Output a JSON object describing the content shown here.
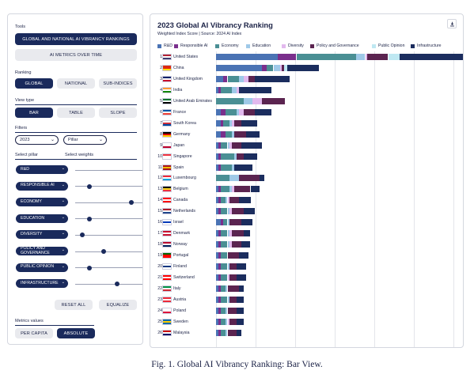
{
  "controls": {
    "tools_label": "Tools",
    "tool_buttons": [
      "GLOBAL AND NATIONAL AI VIBRANCY RANKINGS",
      "AI METRICS OVER TIME"
    ],
    "ranking_label": "Ranking",
    "ranking_buttons": [
      "GLOBAL",
      "NATIONAL",
      "SUB-INDICES"
    ],
    "viewtype_label": "View type",
    "viewtype_buttons": [
      "BAR",
      "TABLE",
      "SLOPE"
    ],
    "filters_label": "Filters",
    "year_value": "2023",
    "filter_value": "Pillar",
    "select_pillar_label": "Select pillar",
    "select_weights_label": "Select weights",
    "pillars": [
      {
        "label": "R&D",
        "weight": 1.0
      },
      {
        "label": "RESPONSIBLE AI",
        "weight": 0.2
      },
      {
        "label": "ECONOMY",
        "weight": 0.8
      },
      {
        "label": "EDUCATION",
        "weight": 0.2
      },
      {
        "label": "DIVERSITY",
        "weight": 0.1
      },
      {
        "label": "POLICY AND GOVERNANCE",
        "weight": 0.4
      },
      {
        "label": "PUBLIC OPINION",
        "weight": 0.2
      },
      {
        "label": "INFRASTRUCTURE",
        "weight": 0.6
      }
    ],
    "reset_label": "RESET ALL",
    "equalize_label": "EQUALIZE",
    "metrics_label": "Metrics values",
    "metric_buttons": [
      "PER CAPITA",
      "ABSOLUTE"
    ]
  },
  "chart_header": {
    "title": "2023 Global AI Vibrancy Ranking",
    "subtitle": "Weighted Index Score | Source: 2024 AI Index",
    "download_icon": "download-icon"
  },
  "colors": {
    "R&D": "#4a73b4",
    "Responsible AI": "#7a2f8c",
    "Economy": "#4a8f94",
    "Education": "#9fc9e8",
    "Diversity": "#e2b9ee",
    "Policy and Governance": "#5b2450",
    "Public Opinion": "#bfe8f2",
    "Infrastructure": "#1b2d5e"
  },
  "chart_data": {
    "type": "bar",
    "orientation": "horizontal",
    "stacked": true,
    "title": "2023 Global AI Vibrancy Ranking",
    "subtitle": "Weighted Index Score | Source: 2024 AI Index",
    "legend_position": "top",
    "grid": true,
    "xlim": [
      0,
      100
    ],
    "series_names": [
      "R&D",
      "Responsible AI",
      "Economy",
      "Education",
      "Diversity",
      "Policy and Governance",
      "Public Opinion",
      "Infrastructure"
    ],
    "rows": [
      {
        "rank": "1",
        "country": "United States",
        "flag": [
          "#b22234",
          "#ffffff",
          "#3c3b6e"
        ],
        "values": [
          27,
          8,
          26,
          4,
          1,
          9,
          5,
          29
        ]
      },
      {
        "rank": "2",
        "country": "China",
        "flag": [
          "#de2910",
          "#de2910",
          "#ffde00"
        ],
        "values": [
          20,
          2,
          3,
          3,
          0.5,
          1,
          1.5,
          14
        ]
      },
      {
        "rank": "3",
        "country": "United Kingdom",
        "flag": [
          "#012169",
          "#ffffff",
          "#c8102e"
        ],
        "values": [
          3,
          2,
          5,
          2,
          2,
          3,
          0,
          15
        ]
      },
      {
        "rank": "4",
        "country": "India",
        "flag": [
          "#ff9933",
          "#ffffff",
          "#138808"
        ],
        "values": [
          1,
          1,
          5,
          2,
          1,
          0,
          0,
          14
        ]
      },
      {
        "rank": "5",
        "country": "United Arab Emirates",
        "flag": [
          "#00732f",
          "#ffffff",
          "#000000"
        ],
        "values": [
          0,
          0,
          12,
          4,
          4,
          10,
          0,
          0
        ]
      },
      {
        "rank": "6",
        "country": "France",
        "flag": [
          "#0055a4",
          "#ffffff",
          "#ef4135"
        ],
        "values": [
          2,
          2,
          5,
          1,
          2,
          5,
          0,
          7
        ]
      },
      {
        "rank": "7",
        "country": "South Korea",
        "flag": [
          "#ffffff",
          "#cd2e3a",
          "#0047a0"
        ],
        "values": [
          2,
          1,
          3,
          1,
          1,
          3,
          0,
          7
        ]
      },
      {
        "rank": "8",
        "country": "Germany",
        "flag": [
          "#000000",
          "#dd0000",
          "#ffce00"
        ],
        "values": [
          2,
          2,
          3,
          1,
          0,
          5,
          0,
          6
        ]
      },
      {
        "rank": "9",
        "country": "Japan",
        "flag": [
          "#ffffff",
          "#ffffff",
          "#bc002d"
        ],
        "values": [
          1,
          1,
          3,
          1,
          1,
          4,
          0,
          9
        ]
      },
      {
        "rank": "10",
        "country": "Singapore",
        "flag": [
          "#ef3340",
          "#ffffff",
          "#ffffff"
        ],
        "values": [
          1,
          1,
          6,
          1,
          0,
          3,
          0,
          6
        ]
      },
      {
        "rank": "11",
        "country": "Spain",
        "flag": [
          "#aa151b",
          "#f1bf00",
          "#aa151b"
        ],
        "values": [
          1,
          1,
          5,
          1,
          0,
          0,
          0,
          8
        ]
      },
      {
        "rank": "12",
        "country": "Luxembourg",
        "flag": [
          "#ed2939",
          "#ffffff",
          "#00a1de"
        ],
        "values": [
          0,
          0,
          6,
          4,
          0,
          9,
          0,
          2
        ]
      },
      {
        "rank": "13",
        "country": "Belgium",
        "flag": [
          "#000000",
          "#fdda24",
          "#ef3340"
        ],
        "values": [
          1,
          1,
          4,
          1,
          1,
          7,
          0,
          4
        ]
      },
      {
        "rank": "14",
        "country": "Canada",
        "flag": [
          "#ff0000",
          "#ffffff",
          "#ff0000"
        ],
        "values": [
          1,
          1,
          2,
          1,
          1,
          4,
          0,
          5
        ]
      },
      {
        "rank": "15",
        "country": "Netherlands",
        "flag": [
          "#ae1c28",
          "#ffffff",
          "#21468b"
        ],
        "values": [
          1,
          1,
          3,
          1,
          1,
          5,
          0,
          5
        ]
      },
      {
        "rank": "16",
        "country": "Israel",
        "flag": [
          "#ffffff",
          "#0038b8",
          "#ffffff"
        ],
        "values": [
          2,
          1,
          2,
          1,
          0,
          5,
          0,
          5
        ]
      },
      {
        "rank": "17",
        "country": "Denmark",
        "flag": [
          "#c8102e",
          "#ffffff",
          "#c8102e"
        ],
        "values": [
          1,
          1,
          3,
          1,
          1,
          5,
          0,
          3
        ]
      },
      {
        "rank": "18",
        "country": "Norway",
        "flag": [
          "#ba0c2f",
          "#ffffff",
          "#00205b"
        ],
        "values": [
          1,
          1,
          3,
          1,
          1,
          4,
          0,
          4
        ]
      },
      {
        "rank": "19",
        "country": "Portugal",
        "flag": [
          "#006600",
          "#ff0000",
          "#ff0000"
        ],
        "values": [
          1,
          1,
          3,
          0,
          0,
          5,
          0,
          4
        ]
      },
      {
        "rank": "20",
        "country": "Finland",
        "flag": [
          "#ffffff",
          "#003580",
          "#ffffff"
        ],
        "values": [
          1,
          1,
          3,
          1,
          0,
          3,
          0,
          4
        ]
      },
      {
        "rank": "21",
        "country": "Switzerland",
        "flag": [
          "#ff0000",
          "#ffffff",
          "#ff0000"
        ],
        "values": [
          1,
          1,
          3,
          0,
          1,
          3,
          0,
          4
        ]
      },
      {
        "rank": "22",
        "country": "Italy",
        "flag": [
          "#009246",
          "#ffffff",
          "#ce2b37"
        ],
        "values": [
          1,
          1,
          2,
          1,
          0,
          5,
          0,
          2
        ]
      },
      {
        "rank": "23",
        "country": "Austria",
        "flag": [
          "#ed2939",
          "#ffffff",
          "#ed2939"
        ],
        "values": [
          1,
          1,
          3,
          1,
          0,
          3,
          0,
          3
        ]
      },
      {
        "rank": "24",
        "country": "Poland",
        "flag": [
          "#ffffff",
          "#ffffff",
          "#dc143c"
        ],
        "values": [
          1,
          1,
          2,
          1,
          0,
          4,
          0,
          3
        ]
      },
      {
        "rank": "25",
        "country": "Sweden",
        "flag": [
          "#006aa7",
          "#fecc00",
          "#006aa7"
        ],
        "values": [
          1,
          1,
          2,
          1,
          1,
          3,
          0,
          3
        ]
      },
      {
        "rank": "26",
        "country": "Malaysia",
        "flag": [
          "#cc0001",
          "#ffffff",
          "#010066"
        ],
        "values": [
          1,
          1,
          2,
          1,
          0,
          4,
          0,
          2
        ]
      }
    ]
  },
  "caption": "Fig. 1.  Global AI Vibrancy Ranking: Bar View."
}
